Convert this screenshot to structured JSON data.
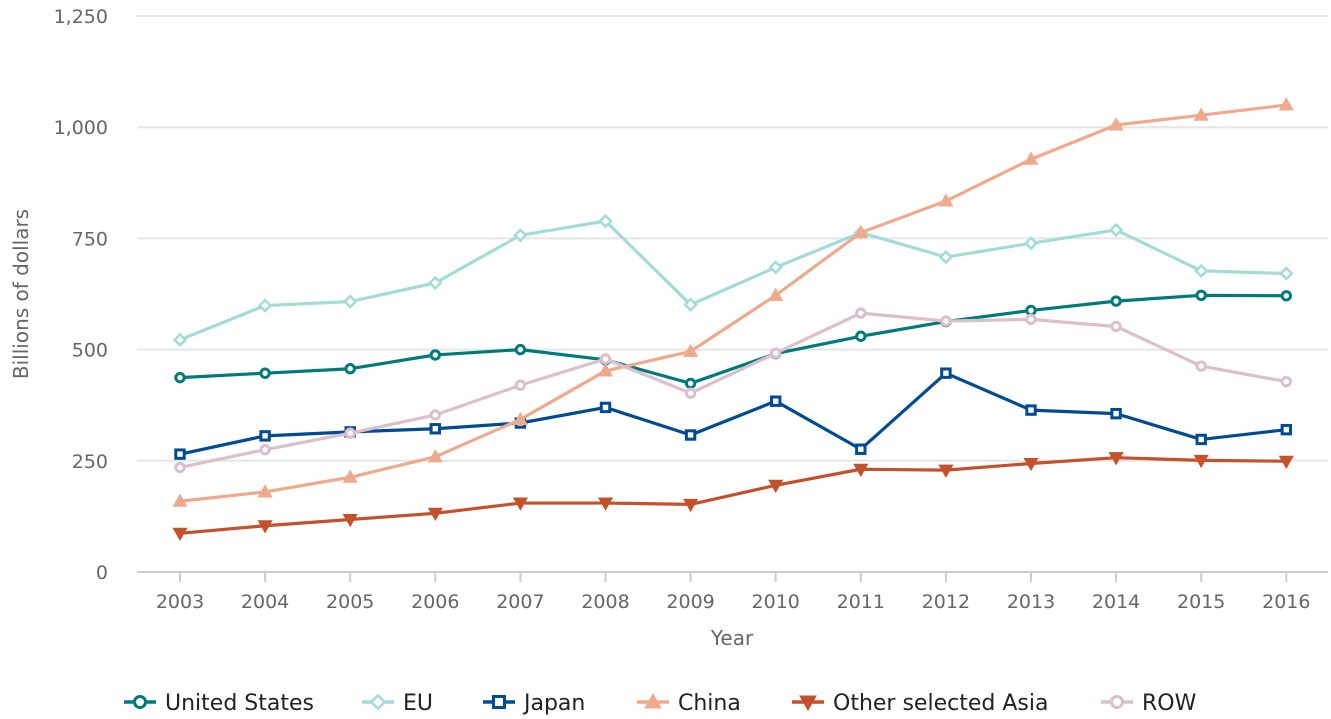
{
  "chart_data": {
    "type": "line",
    "title": "",
    "xlabel": "Year",
    "ylabel": "Billions of dollars",
    "x": [
      "2003",
      "2004",
      "2005",
      "2006",
      "2007",
      "2008",
      "2009",
      "2010",
      "2011",
      "2012",
      "2013",
      "2014",
      "2015",
      "2016"
    ],
    "ylim": [
      0,
      1250
    ],
    "yticks": [
      {
        "value": 0,
        "label": "0"
      },
      {
        "value": 250,
        "label": "250"
      },
      {
        "value": 500,
        "label": "500"
      },
      {
        "value": 750,
        "label": "750"
      },
      {
        "value": 1000,
        "label": "1,000"
      },
      {
        "value": 1250,
        "label": "1,250"
      }
    ],
    "grid": "horizontal",
    "legend_position": "bottom",
    "series": [
      {
        "name": "United States",
        "color": "#007a7a",
        "marker": "circle",
        "values": [
          437,
          447,
          457,
          488,
          500,
          477,
          424,
          491,
          530,
          563,
          588,
          609,
          622,
          621
        ]
      },
      {
        "name": "EU",
        "color": "#a3dbd8",
        "marker": "diamond",
        "values": [
          522,
          599,
          608,
          650,
          757,
          789,
          601,
          685,
          763,
          708,
          739,
          769,
          677,
          671
        ]
      },
      {
        "name": "Japan",
        "color": "#004b93",
        "marker": "square",
        "values": [
          265,
          306,
          315,
          322,
          335,
          370,
          308,
          384,
          276,
          447,
          364,
          356,
          298,
          320
        ]
      },
      {
        "name": "China",
        "color": "#efa98c",
        "marker": "triangle-up",
        "values": [
          159,
          180,
          213,
          259,
          343,
          452,
          496,
          622,
          763,
          834,
          928,
          1005,
          1027,
          1050
        ]
      },
      {
        "name": "Other selected Asia",
        "color": "#c5512b",
        "marker": "triangle-down",
        "values": [
          87,
          104,
          118,
          132,
          155,
          155,
          152,
          195,
          231,
          229,
          244,
          257,
          251,
          249
        ]
      },
      {
        "name": "ROW",
        "color": "#dbbfcc",
        "marker": "circle",
        "values": [
          235,
          275,
          312,
          353,
          420,
          479,
          402,
          492,
          582,
          564,
          568,
          552,
          463,
          428
        ]
      }
    ]
  }
}
